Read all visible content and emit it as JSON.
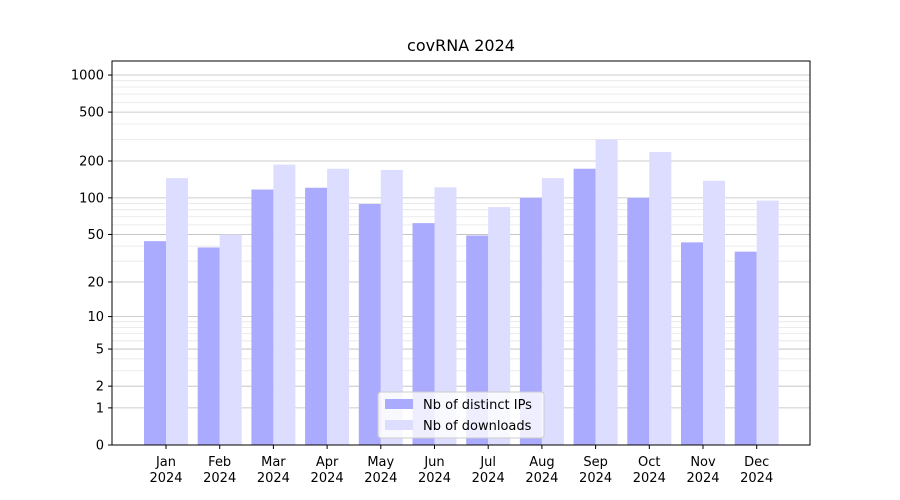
{
  "chart_data": {
    "type": "bar",
    "title": "covRNA 2024",
    "xlabel": "",
    "ylabel": "",
    "scale": "log1p",
    "ylim": [
      0,
      1300
    ],
    "yticks": [
      0,
      1,
      2,
      5,
      10,
      20,
      50,
      100,
      200,
      500,
      1000
    ],
    "ytick_labels": [
      "0",
      "1",
      "2",
      "5",
      "10",
      "20",
      "50",
      "100",
      "200",
      "500",
      "1000"
    ],
    "categories": [
      [
        "Jan",
        "2024"
      ],
      [
        "Feb",
        "2024"
      ],
      [
        "Mar",
        "2024"
      ],
      [
        "Apr",
        "2024"
      ],
      [
        "May",
        "2024"
      ],
      [
        "Jun",
        "2024"
      ],
      [
        "Jul",
        "2024"
      ],
      [
        "Aug",
        "2024"
      ],
      [
        "Sep",
        "2024"
      ],
      [
        "Oct",
        "2024"
      ],
      [
        "Nov",
        "2024"
      ],
      [
        "Dec",
        "2024"
      ]
    ],
    "series": [
      {
        "name": "Nb of distinct IPs",
        "color": "#aaaaff",
        "values": [
          44,
          39,
          117,
          121,
          89,
          62,
          49,
          100,
          173,
          100,
          43,
          36
        ]
      },
      {
        "name": "Nb of downloads",
        "color": "#ddddff",
        "values": [
          145,
          50,
          187,
          173,
          169,
          122,
          84,
          145,
          299,
          237,
          138,
          95
        ]
      }
    ],
    "grid": true,
    "legend_position": "bottom-center"
  }
}
